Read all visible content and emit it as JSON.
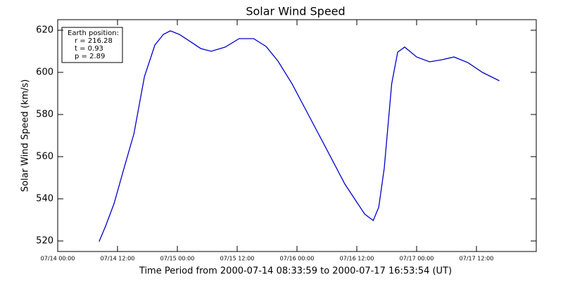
{
  "chart_data": {
    "type": "line",
    "title": "Solar Wind Speed",
    "x_label": "Time Period from 2000-07-14 08:33:59 to 2000-07-17 16:53:54 (UT)",
    "y_label": "Solar Wind Speed (km/s)",
    "annotations": [
      "Earth position:",
      "r = 216.28",
      "t = 0.93",
      "p = 2.89"
    ],
    "color": "#0000cc",
    "x": [
      8.3,
      9.6,
      11.3,
      13.1,
      15.3,
      17.4,
      19.5,
      21.2,
      22.6,
      24.4,
      26.6,
      28.7,
      30.8,
      33.6,
      36.4,
      39.3,
      41.8,
      44.2,
      47.0,
      50.6,
      54.1,
      57.6,
      61.6,
      63.3,
      64.4,
      65.5,
      67.0,
      68.2,
      69.6,
      72.0,
      74.6,
      77.1,
      79.5,
      82.3,
      85.2,
      88.6
    ],
    "values": [
      519.7,
      527,
      537.7,
      552.8,
      571,
      598,
      613,
      618,
      619.7,
      618,
      614.6,
      611.3,
      610,
      612,
      616,
      616,
      612.3,
      605.3,
      594.6,
      578.5,
      562.8,
      547,
      532.7,
      529.7,
      536,
      554.4,
      594.6,
      609.6,
      612,
      607.3,
      605,
      606,
      607.3,
      604.6,
      600,
      596
    ],
    "xlim": [
      0,
      96
    ],
    "xticks": [
      {
        "value": 0,
        "label": "07/14 00:00"
      },
      {
        "value": 12,
        "label": "07/14 12:00"
      },
      {
        "value": 24,
        "label": "07/15 00:00"
      },
      {
        "value": 36,
        "label": "07/15 12:00"
      },
      {
        "value": 48,
        "label": "07/16 00:00"
      },
      {
        "value": 60,
        "label": "07/16 12:00"
      },
      {
        "value": 72,
        "label": "07/17 00:00"
      },
      {
        "value": 84,
        "label": "07/17 12:00"
      }
    ],
    "ylim": [
      515,
      625
    ],
    "yticks": [
      520,
      540,
      560,
      580,
      600,
      620
    ]
  }
}
